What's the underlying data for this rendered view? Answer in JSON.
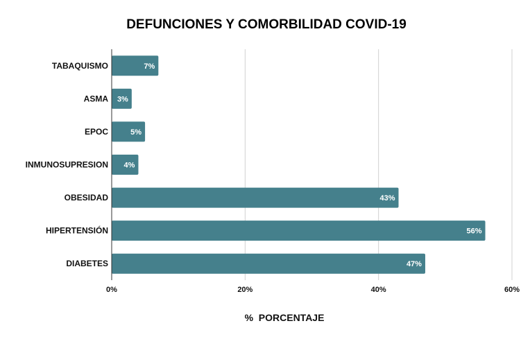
{
  "chart_data": {
    "type": "bar",
    "orientation": "horizontal",
    "title": "DEFUNCIONES Y COMORBILIDAD COVID-19",
    "xlabel": "%  PORCENTAJE",
    "ylabel": "",
    "categories": [
      "TABAQUISMO",
      "ASMA",
      "EPOC",
      "INMUNOSUPRESION",
      "OBESIDAD",
      "HIPERTENSIÓN",
      "DIABETES"
    ],
    "values": [
      7,
      3,
      5,
      4,
      43,
      56,
      47
    ],
    "value_labels": [
      "7%",
      "3%",
      "5%",
      "4%",
      "43%",
      "56%",
      "47%"
    ],
    "xlim": [
      0,
      60
    ],
    "x_ticks": [
      0,
      20,
      40,
      60
    ],
    "x_tick_labels": [
      "0%",
      "20%",
      "40%",
      "60%"
    ],
    "grid": true,
    "legend": "none",
    "bar_color": "#45808c"
  }
}
